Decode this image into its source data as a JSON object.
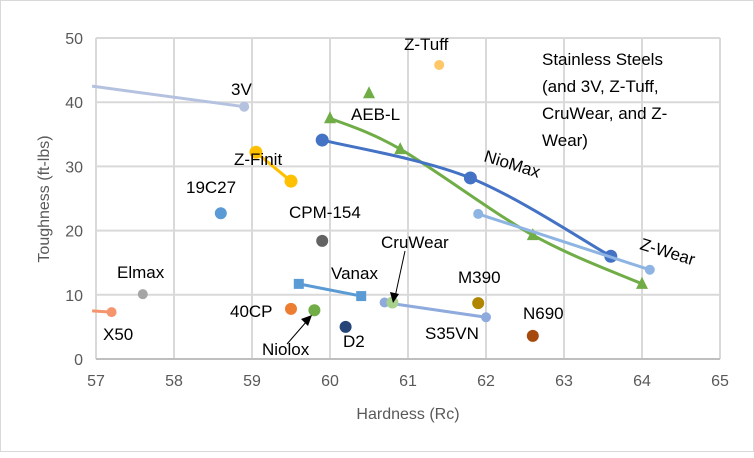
{
  "chart_data": {
    "type": "scatter",
    "title": "",
    "xlabel": "Hardness (Rc)",
    "ylabel": "Toughness (ft-lbs)",
    "xlim": [
      57,
      65
    ],
    "ylim": [
      0,
      50
    ],
    "xticks": [
      "57",
      "58",
      "59",
      "60",
      "61",
      "62",
      "63",
      "64",
      "65"
    ],
    "yticks": [
      "0",
      "10",
      "20",
      "30",
      "40",
      "50"
    ],
    "grid": true,
    "annotation": "Stainless Steels (and 3V, Z-Tuff, CruWear, and Z-Wear)",
    "series": [
      {
        "name": "3V",
        "color": "#b4c2e0",
        "marker": "circle",
        "line": true,
        "points": [
          [
            56.95,
            42.5
          ],
          [
            58.9,
            39.3
          ]
        ]
      },
      {
        "name": "Z-Finit",
        "color": "#ffc000",
        "marker": "circle",
        "line": true,
        "points": [
          [
            59.05,
            32.2
          ],
          [
            59.5,
            27.7
          ]
        ]
      },
      {
        "name": "19C27",
        "color": "#5b9bd5",
        "marker": "circle",
        "line": false,
        "points": [
          [
            58.6,
            22.7
          ]
        ]
      },
      {
        "name": "CPM-154",
        "color": "#636363",
        "marker": "circle",
        "line": false,
        "points": [
          [
            59.9,
            18.4
          ]
        ]
      },
      {
        "name": "Elmax",
        "color": "#a5a5a5",
        "marker": "circle",
        "line": false,
        "points": [
          [
            57.6,
            10.1
          ]
        ]
      },
      {
        "name": "X50",
        "color": "#f4956e",
        "marker": "circle",
        "line": true,
        "points": [
          [
            56.95,
            7.5
          ],
          [
            57.2,
            7.3
          ]
        ]
      },
      {
        "name": "40CP",
        "color": "#ed7d31",
        "marker": "circle",
        "line": false,
        "points": [
          [
            59.5,
            7.8
          ]
        ]
      },
      {
        "name": "Niolox",
        "color": "#70ad47",
        "marker": "circle",
        "line": false,
        "points": [
          [
            59.8,
            7.6
          ]
        ]
      },
      {
        "name": "D2",
        "color": "#264478",
        "marker": "circle",
        "line": false,
        "points": [
          [
            60.2,
            5.0
          ]
        ]
      },
      {
        "name": "Vanax",
        "color": "#5b9bd5",
        "marker": "square",
        "line": true,
        "points": [
          [
            59.6,
            11.7
          ],
          [
            60.4,
            9.8
          ]
        ]
      },
      {
        "name": "S35VN",
        "color": "#8faadc",
        "marker": "circle",
        "line": true,
        "points": [
          [
            60.7,
            8.8
          ],
          [
            62.0,
            6.5
          ]
        ]
      },
      {
        "name": "CruWear",
        "color": "#a9d18e",
        "marker": "circle",
        "line": false,
        "points": [
          [
            60.8,
            8.8
          ]
        ]
      },
      {
        "name": "M390",
        "color": "#b08600",
        "marker": "circle",
        "line": false,
        "points": [
          [
            61.9,
            8.7
          ]
        ]
      },
      {
        "name": "N690",
        "color": "#a5490d",
        "marker": "circle",
        "line": false,
        "points": [
          [
            62.6,
            3.6
          ]
        ]
      },
      {
        "name": "Z-Tuff",
        "color": "#ffc766",
        "marker": "circle",
        "line": false,
        "points": [
          [
            61.4,
            45.8
          ]
        ]
      },
      {
        "name": "AEB-L",
        "color": "#70ad47",
        "marker": "triangle",
        "line": true,
        "smooth": true,
        "points": [
          [
            60.0,
            37.5
          ],
          [
            60.9,
            32.7
          ],
          [
            62.6,
            19.3
          ],
          [
            64.0,
            11.7
          ]
        ]
      },
      {
        "name": "AEB-L (single)",
        "color": "#70ad47",
        "marker": "triangle",
        "line": false,
        "points": [
          [
            60.5,
            41.4
          ]
        ]
      },
      {
        "name": "NioMax",
        "color": "#4472c4",
        "marker": "circle",
        "line": true,
        "smooth": true,
        "points": [
          [
            59.9,
            34.1
          ],
          [
            61.8,
            28.2
          ],
          [
            63.6,
            16.0
          ]
        ]
      },
      {
        "name": "Z-Wear",
        "color": "#8db4e2",
        "marker": "circle",
        "line": true,
        "points": [
          [
            61.9,
            22.6
          ],
          [
            64.1,
            13.9
          ]
        ]
      }
    ],
    "labels": [
      {
        "text": "3V"
      },
      {
        "text": "Z-Finit"
      },
      {
        "text": "19C27"
      },
      {
        "text": "CPM-154"
      },
      {
        "text": "Elmax"
      },
      {
        "text": "X50"
      },
      {
        "text": "40CP"
      },
      {
        "text": "Niolox"
      },
      {
        "text": "D2"
      },
      {
        "text": "Vanax"
      },
      {
        "text": "S35VN"
      },
      {
        "text": "CruWear"
      },
      {
        "text": "M390"
      },
      {
        "text": "N690"
      },
      {
        "text": "Z-Tuff"
      },
      {
        "text": "AEB-L"
      },
      {
        "text": "NioMax"
      },
      {
        "text": "Z-Wear"
      }
    ]
  }
}
